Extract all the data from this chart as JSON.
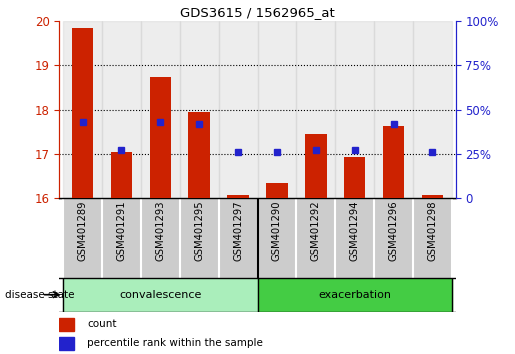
{
  "title": "GDS3615 / 1562965_at",
  "categories": [
    "GSM401289",
    "GSM401291",
    "GSM401293",
    "GSM401295",
    "GSM401297",
    "GSM401290",
    "GSM401292",
    "GSM401294",
    "GSM401296",
    "GSM401298"
  ],
  "red_values": [
    19.85,
    17.05,
    18.73,
    17.95,
    16.07,
    16.35,
    17.45,
    16.93,
    17.63,
    16.07
  ],
  "blue_values_pct": [
    43,
    27,
    43,
    42,
    26,
    26,
    27,
    27,
    42,
    26
  ],
  "ylim_left": [
    16,
    20
  ],
  "ylim_right": [
    0,
    100
  ],
  "yticks_left": [
    16,
    17,
    18,
    19,
    20
  ],
  "yticks_right": [
    0,
    25,
    50,
    75,
    100
  ],
  "n_conv": 5,
  "n_exac": 5,
  "bar_color": "#CC2200",
  "blue_color": "#2222CC",
  "convalescence_color": "#AAEEBB",
  "exacerbation_color": "#44CC44",
  "label_color_left": "#CC2200",
  "label_color_right": "#2222CC",
  "disease_state_label": "disease state",
  "convalescence_label": "convalescence",
  "exacerbation_label": "exacerbation",
  "legend_count": "count",
  "legend_pct": "percentile rank within the sample",
  "baseline": 16,
  "gray_bg": "#CCCCCC",
  "col_border": "#888888"
}
